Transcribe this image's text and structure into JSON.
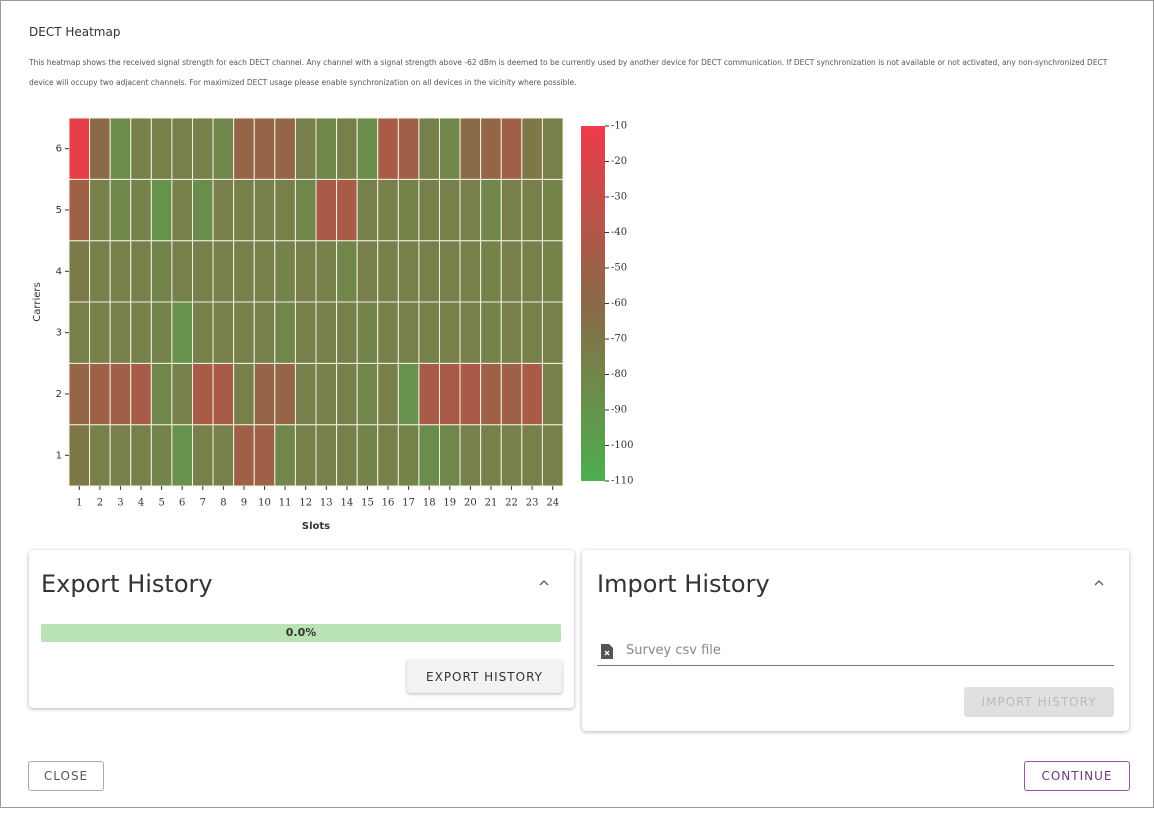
{
  "header": {
    "title": "DECT Heatmap",
    "description": "This heatmap shows the received signal strength for each DECT channel. Any channel with a signal strength above -62 dBm is deemed to be currently used by another device for DECT communication. If DECT synchronization is not available or not activated, any non-synchronized DECT device will occupy two adjacent channels. For maximized DECT usage please enable synchronization on all devices in the vicinity where possible."
  },
  "chart_data": {
    "type": "heatmap",
    "x_label": "Slots",
    "y_label": "Carriers",
    "x": [
      1,
      2,
      3,
      4,
      5,
      6,
      7,
      8,
      9,
      10,
      11,
      12,
      13,
      14,
      15,
      16,
      17,
      18,
      19,
      20,
      21,
      22,
      23,
      24
    ],
    "y": [
      1,
      2,
      3,
      4,
      5,
      6
    ],
    "values": [
      [
        -70,
        -75,
        -75,
        -75,
        -78,
        -88,
        -75,
        -75,
        -50,
        -50,
        -80,
        -75,
        -75,
        -75,
        -78,
        -75,
        -78,
        -85,
        -80,
        -75,
        -75,
        -75,
        -75,
        -75
      ],
      [
        -55,
        -50,
        -50,
        -45,
        -80,
        -75,
        -45,
        -45,
        -75,
        -55,
        -55,
        -75,
        -75,
        -75,
        -80,
        -75,
        -88,
        -45,
        -45,
        -45,
        -50,
        -50,
        -45,
        -75
      ],
      [
        -75,
        -75,
        -75,
        -75,
        -78,
        -88,
        -75,
        -75,
        -75,
        -75,
        -80,
        -75,
        -75,
        -75,
        -78,
        -75,
        -75,
        -75,
        -75,
        -75,
        -78,
        -75,
        -75,
        -75
      ],
      [
        -72,
        -75,
        -75,
        -75,
        -78,
        -75,
        -75,
        -75,
        -75,
        -75,
        -78,
        -75,
        -75,
        -80,
        -75,
        -75,
        -75,
        -75,
        -75,
        -75,
        -78,
        -75,
        -75,
        -78
      ],
      [
        -50,
        -75,
        -80,
        -78,
        -90,
        -75,
        -85,
        -75,
        -75,
        -75,
        -75,
        -80,
        -45,
        -45,
        -75,
        -75,
        -78,
        -75,
        -75,
        -75,
        -80,
        -75,
        -75,
        -78
      ],
      [
        -15,
        -60,
        -85,
        -75,
        -75,
        -75,
        -75,
        -80,
        -55,
        -55,
        -55,
        -75,
        -80,
        -75,
        -85,
        -45,
        -50,
        -75,
        -80,
        -60,
        -55,
        -50,
        -70,
        -75
      ]
    ],
    "colors": [
      "#4caf50",
      "#8a6a47",
      "#ef3b4a"
    ],
    "clim": [
      -110,
      -10
    ],
    "cticks": [
      -10,
      -20,
      -30,
      -40,
      -50,
      -60,
      -70,
      -80,
      -90,
      -100,
      -110
    ]
  },
  "export": {
    "title": "Export History",
    "progress": {
      "value": 0,
      "label": "0.0%"
    },
    "button": "EXPORT HISTORY"
  },
  "import": {
    "title": "Import History",
    "placeholder": "Survey csv file",
    "button": "IMPORT HISTORY"
  },
  "footer": {
    "close": "CLOSE",
    "continue": "CONTINUE"
  }
}
